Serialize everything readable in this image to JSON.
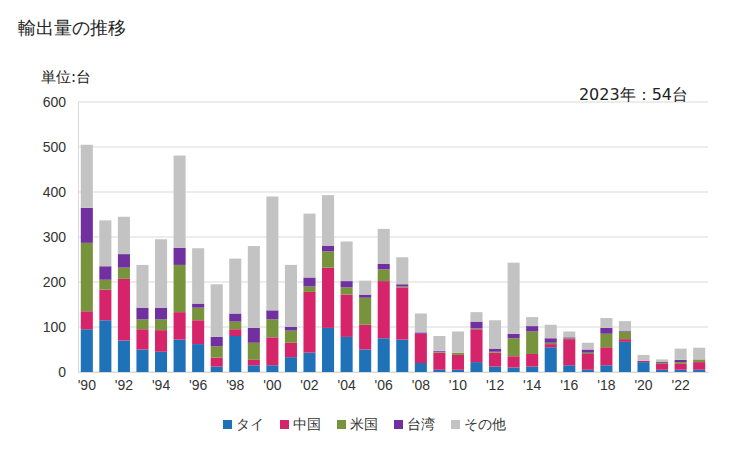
{
  "chart_data": {
    "type": "bar",
    "title": "輸出量の推移",
    "y_label": "単位:台",
    "annotation": "2023年：54台",
    "stacked": true,
    "grid": true,
    "legend": "bottom",
    "categories": [
      "'90",
      null,
      "'92",
      null,
      "'94",
      null,
      "'96",
      null,
      "'98",
      null,
      "'00",
      null,
      "'02",
      null,
      "'04",
      null,
      "'06",
      null,
      "'08",
      null,
      "'10",
      null,
      "'12",
      null,
      "'14",
      null,
      "'16",
      null,
      "'18",
      null,
      "'20",
      null,
      "'22",
      null
    ],
    "ylim": [
      0,
      600
    ],
    "yticks": [
      0,
      100,
      200,
      300,
      400,
      500,
      600
    ],
    "series": [
      {
        "name": "タイ",
        "color": "#1f72b8",
        "values": [
          95,
          115,
          70,
          50,
          45,
          72,
          62,
          12,
          80,
          15,
          15,
          33,
          43,
          98,
          78,
          50,
          75,
          72,
          20,
          5,
          5,
          22,
          12,
          10,
          12,
          55,
          15,
          5,
          15,
          67,
          22,
          5,
          5,
          5
        ]
      },
      {
        "name": "中国",
        "color": "#d6246a",
        "values": [
          40,
          68,
          137,
          45,
          48,
          61,
          53,
          20,
          15,
          12,
          62,
          32,
          135,
          134,
          94,
          55,
          127,
          116,
          65,
          38,
          33,
          73,
          31,
          25,
          28,
          7,
          58,
          35,
          40,
          6,
          3,
          13,
          13,
          17
        ]
      },
      {
        "name": "米国",
        "color": "#77933c",
        "values": [
          152,
          22,
          25,
          22,
          24,
          105,
          28,
          25,
          17,
          38,
          40,
          27,
          12,
          36,
          16,
          60,
          26,
          2,
          0,
          2,
          5,
          2,
          2,
          40,
          50,
          3,
          2,
          3,
          30,
          17,
          0,
          2,
          4,
          6
        ]
      },
      {
        "name": "台湾",
        "color": "#7030a0",
        "values": [
          78,
          30,
          30,
          26,
          26,
          38,
          9,
          21,
          18,
          33,
          20,
          8,
          20,
          12,
          14,
          7,
          12,
          5,
          3,
          2,
          0,
          15,
          7,
          10,
          12,
          10,
          2,
          7,
          13,
          2,
          0,
          2,
          5,
          0
        ]
      },
      {
        "name": "その他",
        "color": "#c3c3c3",
        "values": [
          140,
          102,
          83,
          95,
          152,
          205,
          123,
          117,
          122,
          182,
          253,
          138,
          142,
          113,
          88,
          31,
          78,
          60,
          42,
          33,
          47,
          21,
          63,
          158,
          20,
          30,
          13,
          15,
          22,
          21,
          13,
          6,
          25,
          26
        ]
      }
    ]
  }
}
